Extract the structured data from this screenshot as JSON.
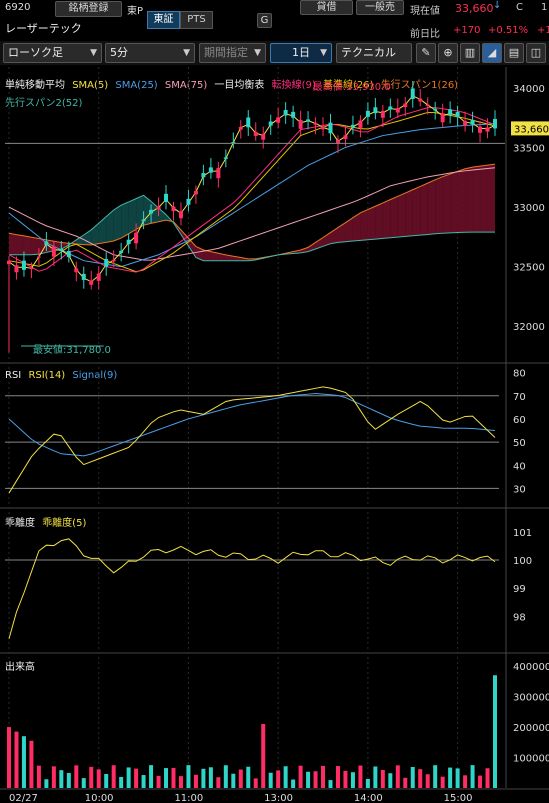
{
  "header": {
    "stock_code": "6920",
    "register_button": "銘柄登録",
    "exchange": "東P",
    "market_tabs": [
      "東証",
      "PTS"
    ],
    "g_button": "G",
    "stock_name": "レーザーテック",
    "lend_button": "貸借",
    "general_button": "一般売",
    "current_price_label": "現在値",
    "current_price": "33,660",
    "down_arrow": "↓",
    "c_label": "C",
    "c_value": "1",
    "prev_diff_label": "前日比",
    "prev_diff": "+170",
    "prev_pct": "+0.51%",
    "cut_value": "+1"
  },
  "toolbar": {
    "chart_type": "ローソク足",
    "interval": "5分",
    "period": "期間指定",
    "range": "1日",
    "technical": "テクニカル",
    "icons": [
      "pencil-icon",
      "zoom-icon",
      "bar-chart-icon",
      "mountain-chart-icon",
      "save-icon",
      "panel-icon"
    ]
  },
  "main_legend": {
    "title": "単純移動平均",
    "sma5": "SMA(5)",
    "sma25": "SMA(25)",
    "sma75": "SMA(75)",
    "ichimoku": "一目均衡表",
    "tenkan": "転換線(9)",
    "kijun": "基準線(26)",
    "span1": "先行スパン1(26)",
    "span2": "先行スパン2(52)"
  },
  "annotations": {
    "high": "最高値:33,930.0",
    "low": "最安値:31,780.0",
    "price_tag": "33,660"
  },
  "rsi_legend": {
    "title": "RSI",
    "rsi": "RSI(14)",
    "signal": "Signal(9)"
  },
  "dev_legend": {
    "title": "乖離度",
    "dev": "乖離度(5)"
  },
  "vol_legend": {
    "title": "出来高"
  },
  "colors": {
    "sma5": "#f2e144",
    "sma25": "#4a9fe8",
    "sma75": "#f4a0b5",
    "tenkan": "#ff2d7a",
    "kijun": "#e8c400",
    "span1": "#e87722",
    "span2": "#40b8a8",
    "up": "#ff2d64",
    "down": "#2ed5c8"
  },
  "chart_data": [
    {
      "type": "candlestick",
      "title": "",
      "ylim": [
        31700,
        34150
      ],
      "y_ticks": [
        "34000",
        "33500",
        "33000",
        "32500",
        "32000"
      ],
      "x_ticks": [
        "02/27",
        "10:00",
        "11:00",
        "13:00",
        "14:00",
        "15:00"
      ],
      "last": 33660,
      "high": 33930,
      "low": 31780
    },
    {
      "type": "line",
      "title": "RSI",
      "ylim": [
        25,
        82
      ],
      "y_ticks": [
        "80",
        "70",
        "60",
        "50",
        "40",
        "30"
      ]
    },
    {
      "type": "line",
      "title": "乖離度",
      "ylim": [
        96.8,
        101.6
      ],
      "y_ticks": [
        "101",
        "100",
        "99",
        "98"
      ]
    },
    {
      "type": "bar",
      "title": "出来高",
      "ylim": [
        0,
        420000
      ],
      "y_ticks": [
        "400000",
        "300000",
        "200000",
        "100000"
      ]
    }
  ]
}
